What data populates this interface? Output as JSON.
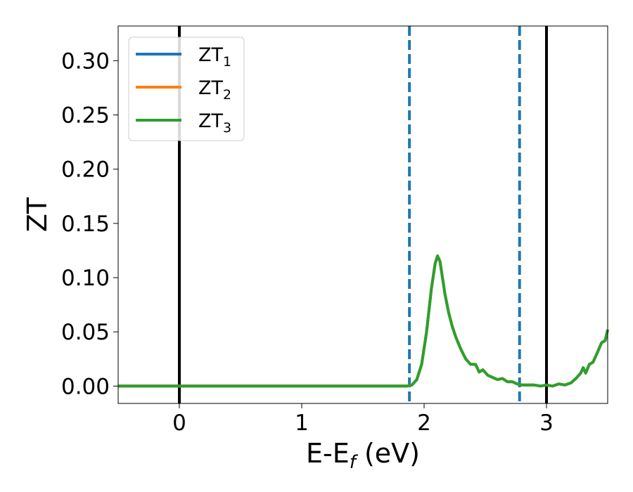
{
  "chart_data": {
    "type": "line",
    "title": "",
    "xlabel": "E-E",
    "xlabel_sub": "f",
    "xlabel_unit": " (eV)",
    "ylabel": "ZT",
    "xlim": [
      -0.5,
      3.5
    ],
    "ylim": [
      -0.016,
      0.332
    ],
    "xticks": [
      0,
      1,
      2,
      3
    ],
    "xtick_labels": [
      "0",
      "1",
      "2",
      "3"
    ],
    "yticks": [
      0.0,
      0.05,
      0.1,
      0.15,
      0.2,
      0.25,
      0.3
    ],
    "ytick_labels": [
      "0.00",
      "0.05",
      "0.10",
      "0.15",
      "0.20",
      "0.25",
      "0.30"
    ],
    "grid": false,
    "legend_position": "upper-left",
    "vlines": [
      {
        "x": 0.0,
        "style": "solid",
        "color": "#000000"
      },
      {
        "x": 3.0,
        "style": "solid",
        "color": "#000000"
      },
      {
        "x": 1.88,
        "style": "dashed",
        "color": "#1f77b4"
      },
      {
        "x": 2.78,
        "style": "dashed",
        "color": "#1f77b4"
      }
    ],
    "series": [
      {
        "name": "ZT",
        "sub": "1",
        "color": "#1f77b4",
        "ref": 0
      },
      {
        "name": "ZT",
        "sub": "2",
        "color": "#ff7f0e",
        "ref": 0
      },
      {
        "name": "ZT",
        "sub": "3",
        "color": "#2ca02c",
        "ref": 0
      }
    ],
    "x": [
      -0.5,
      0.0,
      0.5,
      1.0,
      1.5,
      1.8,
      1.86,
      1.9,
      1.94,
      1.98,
      2.02,
      2.06,
      2.09,
      2.11,
      2.13,
      2.15,
      2.17,
      2.2,
      2.23,
      2.26,
      2.3,
      2.34,
      2.38,
      2.42,
      2.45,
      2.48,
      2.52,
      2.56,
      2.6,
      2.64,
      2.68,
      2.72,
      2.76,
      2.8,
      2.85,
      2.9,
      2.95,
      3.0,
      3.05,
      3.1,
      3.15,
      3.2,
      3.24,
      3.28,
      3.3,
      3.32,
      3.35,
      3.38,
      3.42,
      3.45,
      3.48,
      3.5
    ],
    "values": [
      0.0,
      0.0,
      0.0,
      0.0,
      0.0,
      0.0,
      0.0,
      0.001,
      0.006,
      0.02,
      0.05,
      0.09,
      0.113,
      0.12,
      0.115,
      0.1,
      0.085,
      0.068,
      0.055,
      0.045,
      0.034,
      0.025,
      0.02,
      0.02,
      0.013,
      0.015,
      0.01,
      0.008,
      0.006,
      0.007,
      0.004,
      0.004,
      0.002,
      0.001,
      0.001,
      0.001,
      0.0,
      0.001,
      0.0,
      0.002,
      0.001,
      0.003,
      0.007,
      0.012,
      0.017,
      0.012,
      0.02,
      0.022,
      0.032,
      0.04,
      0.042,
      0.052
    ]
  }
}
